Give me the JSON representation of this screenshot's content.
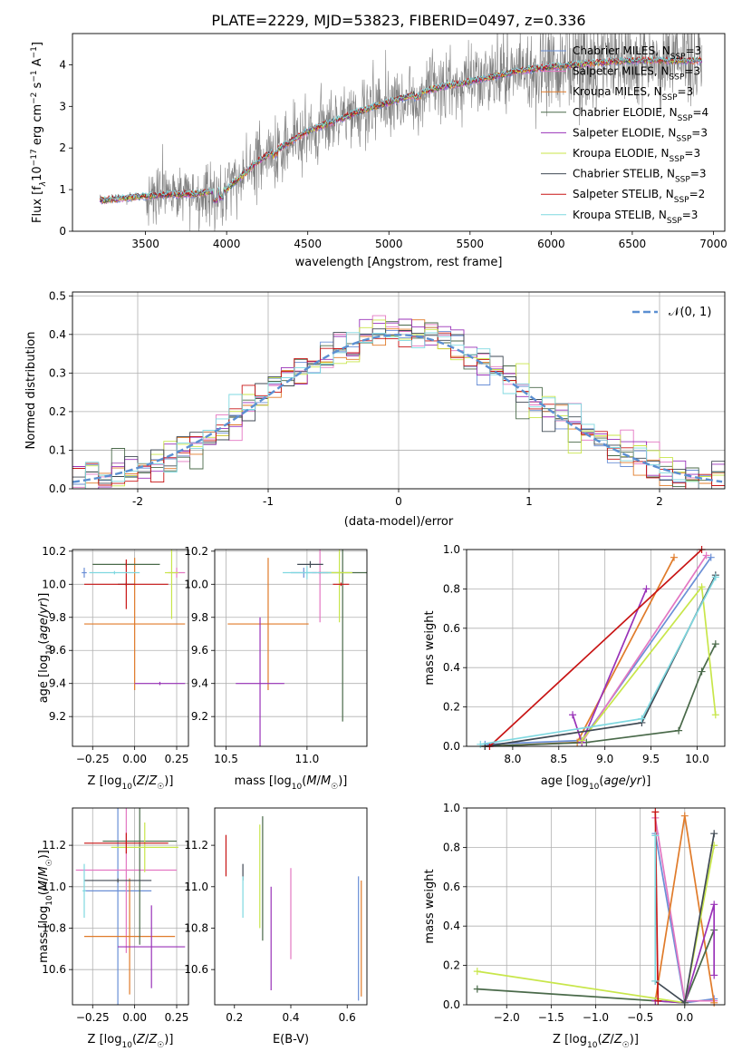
{
  "figure": {
    "title": "PLATE=2229, MJD=53823, FIBERID=0497, z=0.336"
  },
  "chart_data": [
    {
      "id": "spectrum",
      "type": "line",
      "xlabel": "wavelength [Angstrom, rest frame]",
      "ylabel": "Flux [f$_\\lambda$10$^{-17}$ erg cm$^{-2}$ s$^{-1}$ A$^{-1}$]",
      "ylabel_parts": [
        "Flux [f",
        "λ",
        "10",
        "−17",
        " erg cm",
        "−2",
        " s",
        "−1",
        " A",
        "−1",
        "]"
      ],
      "xlim": [
        3050,
        7070
      ],
      "ylim": [
        0,
        4.75
      ],
      "xticks": [
        3500,
        4000,
        4500,
        5000,
        5500,
        6000,
        6500,
        7000
      ],
      "yticks": [
        0,
        1,
        2,
        3,
        4
      ],
      "data_color": "#808080",
      "model_x": [
        3250,
        3500,
        3800,
        4000,
        4200,
        4500,
        4800,
        5000,
        5300,
        5500,
        5800,
        6000,
        6300,
        6500,
        6900
      ],
      "model_y": [
        0.75,
        0.85,
        0.9,
        1.0,
        1.7,
        2.4,
        2.85,
        3.1,
        3.45,
        3.6,
        3.85,
        3.95,
        4.05,
        4.1,
        4.1
      ],
      "series": [
        {
          "name": "Chabrier MILES, N$_{SSP}$=3",
          "label_main": "Chabrier MILES, N",
          "label_sub": "SSP",
          "label_tail": "=3",
          "color": "#6a8fd6"
        },
        {
          "name": "Salpeter MILES, N$_{SSP}$=3",
          "label_main": "Salpeter MILES, N",
          "label_sub": "SSP",
          "label_tail": "=3",
          "color": "#e377c2"
        },
        {
          "name": "Kroupa MILES, N$_{SSP}$=3",
          "label_main": "Kroupa MILES, N",
          "label_sub": "SSP",
          "label_tail": "=3",
          "color": "#e07b2a"
        },
        {
          "name": "Chabrier ELODIE, N$_{SSP}$=4",
          "label_main": "Chabrier ELODIE, N",
          "label_sub": "SSP",
          "label_tail": "=4",
          "color": "#4a6a4a"
        },
        {
          "name": "Salpeter ELODIE, N$_{SSP}$=3",
          "label_main": "Salpeter ELODIE, N",
          "label_sub": "SSP",
          "label_tail": "=3",
          "color": "#9932b8"
        },
        {
          "name": "Kroupa ELODIE, N$_{SSP}$=3",
          "label_main": "Kroupa ELODIE, N",
          "label_sub": "SSP",
          "label_tail": "=3",
          "color": "#c8e64a"
        },
        {
          "name": "Chabrier STELIB, N$_{SSP}$=3",
          "label_main": "Chabrier STELIB, N",
          "label_sub": "SSP",
          "label_tail": "=3",
          "color": "#404a54"
        },
        {
          "name": "Salpeter STELIB, N$_{SSP}$=2",
          "label_main": "Salpeter STELIB, N",
          "label_sub": "SSP",
          "label_tail": "=2",
          "color": "#c81414"
        },
        {
          "name": "Kroupa STELIB, N$_{SSP}$=3",
          "label_main": "Kroupa STELIB, N",
          "label_sub": "SSP",
          "label_tail": "=3",
          "color": "#7fd8e0"
        }
      ],
      "legend": "upper right"
    },
    {
      "id": "residuals",
      "type": "line",
      "xlabel": "(data-model)/error",
      "ylabel": "Normed distribution",
      "xlim": [
        -2.5,
        2.5
      ],
      "ylim": [
        0,
        0.51
      ],
      "xticks": [
        -2,
        -1,
        0,
        1,
        2
      ],
      "yticks": [
        0.0,
        0.1,
        0.2,
        0.3,
        0.4,
        0.5
      ],
      "grid": true,
      "reference": {
        "name": "𝒩(0, 1)",
        "color": "#5b8fd1"
      },
      "legend": "upper right"
    },
    {
      "id": "age-vs-Z",
      "type": "scatter",
      "xlabel": "Z [log10(Z/Z☉)]",
      "ylabel": "age  [log10(age/yr)]",
      "xlim": [
        -0.37,
        0.32
      ],
      "ylim": [
        9.02,
        10.21
      ],
      "xticks": [
        -0.25,
        0.0,
        0.25
      ],
      "xticklabels": [
        "−0.25",
        "0.00",
        "0.25"
      ],
      "yticks": [
        9.2,
        9.4,
        9.6,
        9.8,
        10.0,
        10.2
      ],
      "grid": true,
      "points": [
        {
          "x": -0.3,
          "y": 10.07,
          "xerr": 0.015,
          "yerr": 0.03,
          "c": 0
        },
        {
          "x": 0.25,
          "y": 10.07,
          "xerr": 0.05,
          "yerr": 0.03,
          "c": 1
        },
        {
          "x": 0.0,
          "y": 9.76,
          "xerr": 0.3,
          "yerr": 0.4,
          "c": 2
        },
        {
          "x": -0.05,
          "y": 10.12,
          "xerr": 0.2,
          "yerr": 0.01,
          "c": 3
        },
        {
          "x": 0.15,
          "y": 9.4,
          "xerr": 0.15,
          "yerr": 0.01,
          "c": 4
        },
        {
          "x": 0.22,
          "y": 10.07,
          "xerr": 0.04,
          "yerr": 0.28,
          "c": 5
        },
        {
          "x": -0.05,
          "y": 10.0,
          "xerr": 0.05,
          "yerr": 0.01,
          "c": 6
        },
        {
          "x": -0.05,
          "y": 10.0,
          "xerr": 0.25,
          "yerr": 0.15,
          "c": 7
        },
        {
          "x": -0.12,
          "y": 10.07,
          "xerr": 0.15,
          "yerr": 0.01,
          "c": 8
        }
      ]
    },
    {
      "id": "age-vs-mass",
      "type": "scatter",
      "xlabel": "mass [log10(M/M☉)]",
      "ylabel": "",
      "xlim": [
        10.43,
        11.37
      ],
      "ylim": [
        9.02,
        10.21
      ],
      "xticks": [
        10.5,
        11.0
      ],
      "xticklabels": [
        "10.5",
        "11.0"
      ],
      "yticks": [
        9.2,
        9.4,
        9.6,
        9.8,
        10.0,
        10.2
      ],
      "grid": true,
      "points": [
        {
          "x": 10.98,
          "y": 10.07,
          "xerr": 0.08,
          "yerr": 0.03,
          "c": 0
        },
        {
          "x": 11.08,
          "y": 10.07,
          "xerr": 0.05,
          "yerr": 0.3,
          "c": 1
        },
        {
          "x": 10.76,
          "y": 9.76,
          "xerr": 0.25,
          "yerr": 0.4,
          "c": 2
        },
        {
          "x": 11.22,
          "y": 10.07,
          "xerr": 0.15,
          "yerr": 0.9,
          "c": 3
        },
        {
          "x": 10.71,
          "y": 9.4,
          "xerr": 0.15,
          "yerr": 0.4,
          "c": 4
        },
        {
          "x": 11.2,
          "y": 10.07,
          "xerr": 0.08,
          "yerr": 0.3,
          "c": 5
        },
        {
          "x": 11.02,
          "y": 10.12,
          "xerr": 0.08,
          "yerr": 0.02,
          "c": 6
        },
        {
          "x": 11.21,
          "y": 10.0,
          "xerr": 0.05,
          "yerr": 0.01,
          "c": 7
        },
        {
          "x": 11.0,
          "y": 10.07,
          "xerr": 0.15,
          "yerr": 0.04,
          "c": 8
        }
      ]
    },
    {
      "id": "massweight-vs-age",
      "type": "line",
      "xlabel": "age  [log10(age/yr)]",
      "ylabel": "mass weight",
      "xlim": [
        7.5,
        10.3
      ],
      "ylim": [
        0,
        1.0
      ],
      "xticks": [
        8.0,
        8.5,
        9.0,
        9.5,
        10.0
      ],
      "xticklabels": [
        "8.0",
        "8.5",
        "9.0",
        "9.5",
        "10.0"
      ],
      "yticks": [
        0.0,
        0.2,
        0.4,
        0.6,
        0.8,
        1.0
      ],
      "grid": true,
      "lines": [
        {
          "c": 0,
          "x": [
            7.7,
            8.75,
            10.15
          ],
          "y": [
            0.01,
            0.03,
            0.96
          ]
        },
        {
          "c": 1,
          "x": [
            7.75,
            8.75,
            10.1
          ],
          "y": [
            0.0,
            0.02,
            0.97
          ]
        },
        {
          "c": 2,
          "x": [
            7.7,
            8.7,
            9.75
          ],
          "y": [
            0.0,
            0.02,
            0.96
          ]
        },
        {
          "c": 3,
          "x": [
            7.7,
            8.8,
            9.8,
            10.05,
            10.2
          ],
          "y": [
            0.0,
            0.02,
            0.08,
            0.38,
            0.52
          ]
        },
        {
          "c": 4,
          "x": [
            8.65,
            8.75,
            9.45
          ],
          "y": [
            0.16,
            0.02,
            0.8
          ]
        },
        {
          "c": 5,
          "x": [
            8.75,
            10.05,
            10.2
          ],
          "y": [
            0.03,
            0.81,
            0.16
          ]
        },
        {
          "c": 6,
          "x": [
            7.7,
            9.4,
            10.2
          ],
          "y": [
            0.0,
            0.12,
            0.87
          ]
        },
        {
          "c": 7,
          "x": [
            7.75,
            10.05
          ],
          "y": [
            0.0,
            1.0
          ]
        },
        {
          "c": 8,
          "x": [
            7.65,
            9.4,
            10.2
          ],
          "y": [
            0.01,
            0.14,
            0.86
          ]
        }
      ]
    },
    {
      "id": "mass-vs-Z",
      "type": "scatter",
      "xlabel": "Z [log10(Z/Z☉)]",
      "ylabel": "mass [log10(M/M☉)]",
      "xlim": [
        -0.37,
        0.32
      ],
      "ylim": [
        10.43,
        11.38
      ],
      "xticks": [
        -0.25,
        0.0,
        0.25
      ],
      "xticklabels": [
        "−0.25",
        "0.00",
        "0.25"
      ],
      "yticks": [
        10.6,
        10.8,
        11.0,
        11.2
      ],
      "grid": true,
      "points": [
        {
          "x": -0.1,
          "y": 10.98,
          "xerr": 0.2,
          "yerr": 0.55,
          "c": 0
        },
        {
          "x": -0.05,
          "y": 11.08,
          "xerr": 0.3,
          "yerr": 0.4,
          "c": 1
        },
        {
          "x": -0.03,
          "y": 10.76,
          "xerr": 0.27,
          "yerr": 0.28,
          "c": 2
        },
        {
          "x": 0.03,
          "y": 11.22,
          "xerr": 0.22,
          "yerr": 0.5,
          "c": 3
        },
        {
          "x": 0.1,
          "y": 10.71,
          "xerr": 0.2,
          "yerr": 0.2,
          "c": 4
        },
        {
          "x": 0.06,
          "y": 11.19,
          "xerr": 0.2,
          "yerr": 0.12,
          "c": 5
        },
        {
          "x": -0.1,
          "y": 11.03,
          "xerr": 0.2,
          "yerr": 0.01,
          "c": 6
        },
        {
          "x": -0.05,
          "y": 11.21,
          "xerr": 0.25,
          "yerr": 0.05,
          "c": 7
        },
        {
          "x": -0.3,
          "y": 10.98,
          "xerr": 0.01,
          "yerr": 0.13,
          "c": 8
        }
      ]
    },
    {
      "id": "mass-vs-EBV",
      "type": "scatter",
      "xlabel": "E(B-V)",
      "ylabel": "",
      "xlim": [
        0.13,
        0.67
      ],
      "ylim": [
        10.43,
        11.38
      ],
      "xticks": [
        0.2,
        0.4,
        0.6
      ],
      "xticklabels": [
        "0.2",
        "0.4",
        "0.6"
      ],
      "yticks": [
        10.6,
        10.8,
        11.0,
        11.2
      ],
      "grid": false,
      "points": [
        {
          "x": 0.64,
          "y": 10.75,
          "xerr": 0,
          "yerr": 0.3,
          "c": 0
        },
        {
          "x": 0.4,
          "y": 10.87,
          "xerr": 0,
          "yerr": 0.22,
          "c": 1
        },
        {
          "x": 0.65,
          "y": 10.75,
          "xerr": 0,
          "yerr": 0.28,
          "c": 2
        },
        {
          "x": 0.3,
          "y": 11.04,
          "xerr": 0,
          "yerr": 0.3,
          "c": 3
        },
        {
          "x": 0.33,
          "y": 10.75,
          "xerr": 0,
          "yerr": 0.25,
          "c": 4
        },
        {
          "x": 0.29,
          "y": 11.05,
          "xerr": 0,
          "yerr": 0.25,
          "c": 5
        },
        {
          "x": 0.23,
          "y": 11.07,
          "xerr": 0,
          "yerr": 0.04,
          "c": 6
        },
        {
          "x": 0.17,
          "y": 11.15,
          "xerr": 0,
          "yerr": 0.1,
          "c": 7
        },
        {
          "x": 0.23,
          "y": 10.95,
          "xerr": 0,
          "yerr": 0.1,
          "c": 8
        }
      ]
    },
    {
      "id": "massweight-vs-Z",
      "type": "line",
      "xlabel": "Z [log10(Z/Z☉)]",
      "ylabel": "mass weight",
      "xlim": [
        -2.45,
        0.45
      ],
      "ylim": [
        0,
        1.0
      ],
      "xticks": [
        -2.0,
        -1.5,
        -1.0,
        -0.5,
        0.0
      ],
      "xticklabels": [
        "−2.0",
        "−1.5",
        "−1.0",
        "−0.5",
        "0.0"
      ],
      "yticks": [
        0.0,
        0.2,
        0.4,
        0.6,
        0.8,
        1.0
      ],
      "grid": true,
      "lines": [
        {
          "c": 0,
          "x": [
            -0.33,
            0.0,
            0.33
          ],
          "y": [
            0.87,
            0.01,
            0.03
          ]
        },
        {
          "c": 1,
          "x": [
            -0.33,
            0.0,
            0.33
          ],
          "y": [
            0.95,
            0.02,
            0.02
          ]
        },
        {
          "c": 2,
          "x": [
            -0.33,
            0.0,
            0.33
          ],
          "y": [
            0.02,
            0.96,
            0.01
          ]
        },
        {
          "c": 3,
          "x": [
            -2.33,
            0.0,
            0.33
          ],
          "y": [
            0.08,
            0.01,
            0.38
          ]
        },
        {
          "c": 4,
          "x": [
            -0.33,
            0.0,
            0.33,
            0.33
          ],
          "y": [
            0.02,
            0.01,
            0.51,
            0.15
          ]
        },
        {
          "c": 5,
          "x": [
            -2.33,
            0.0,
            0.33
          ],
          "y": [
            0.17,
            0.01,
            0.81
          ]
        },
        {
          "c": 6,
          "x": [
            -0.33,
            0.0,
            0.33
          ],
          "y": [
            0.12,
            0.01,
            0.87
          ]
        },
        {
          "c": 7,
          "x": [
            -0.33,
            -0.3
          ],
          "y": [
            0.98,
            0.02
          ]
        },
        {
          "c": 8,
          "x": [
            -0.33,
            -0.33
          ],
          "y": [
            0.86,
            0.12
          ]
        }
      ]
    }
  ]
}
